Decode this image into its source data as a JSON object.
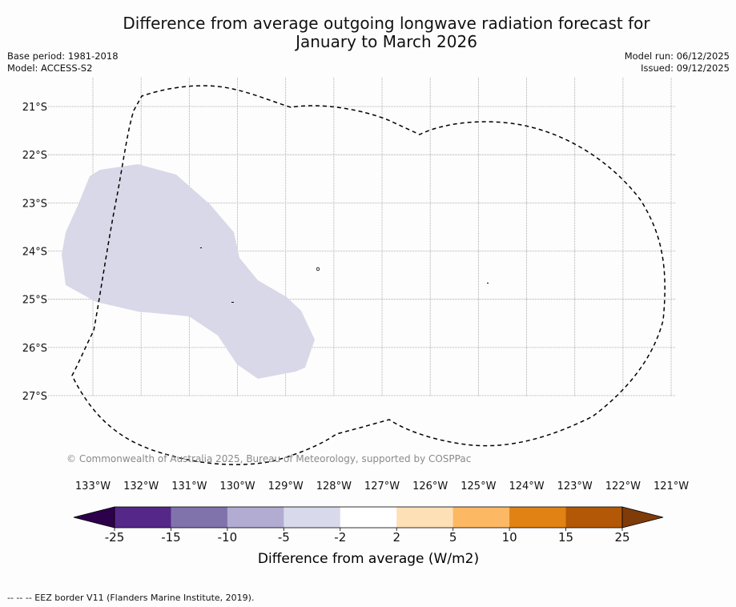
{
  "title": {
    "line1": "Difference from average outgoing longwave radiation forecast for",
    "line2": "January to March 2026"
  },
  "meta": {
    "base_period": "Base period: 1981-2018",
    "model": "Model: ACCESS-S2",
    "model_run": "Model run: 06/12/2025",
    "issued": "Issued: 09/12/2025"
  },
  "map": {
    "copyright": "© Commonwealth of Australia 2025, Bureau of Meteorology, supported by COSPPac",
    "lon_labels": [
      "133°W",
      "132°W",
      "131°W",
      "130°W",
      "129°W",
      "128°W",
      "127°W",
      "126°W",
      "125°W",
      "124°W",
      "123°W",
      "122°W",
      "121°W"
    ],
    "lat_labels": [
      "21°S",
      "22°S",
      "23°S",
      "24°S",
      "25°S",
      "26°S",
      "27°S"
    ],
    "lon_values": [
      -133,
      -132,
      -131,
      -130,
      -129,
      -128,
      -127,
      -126,
      -125,
      -124,
      -123,
      -122,
      -121
    ],
    "lat_values": [
      -21,
      -22,
      -23,
      -24,
      -25,
      -26,
      -27
    ],
    "anomaly_region_category": "-5 to -2",
    "anomaly_region_color": "#d8d8e8",
    "eez_line_color": "#000000"
  },
  "colorbar": {
    "label": "Difference from average (W/m2)",
    "ticks": [
      "-25",
      "-15",
      "-10",
      "-5",
      "-2",
      "2",
      "5",
      "10",
      "15",
      "25"
    ],
    "under_color": "#2d004b",
    "over_color": "#7f3b08",
    "colors": [
      "#542788",
      "#8073ac",
      "#b2abd2",
      "#d8daeb",
      "#ffffff",
      "#fee0b6",
      "#fdb863",
      "#e08214",
      "#b35806"
    ]
  },
  "footnote": "--  --  -- EEZ border V11 (Flanders Marine Institute, 2019)."
}
